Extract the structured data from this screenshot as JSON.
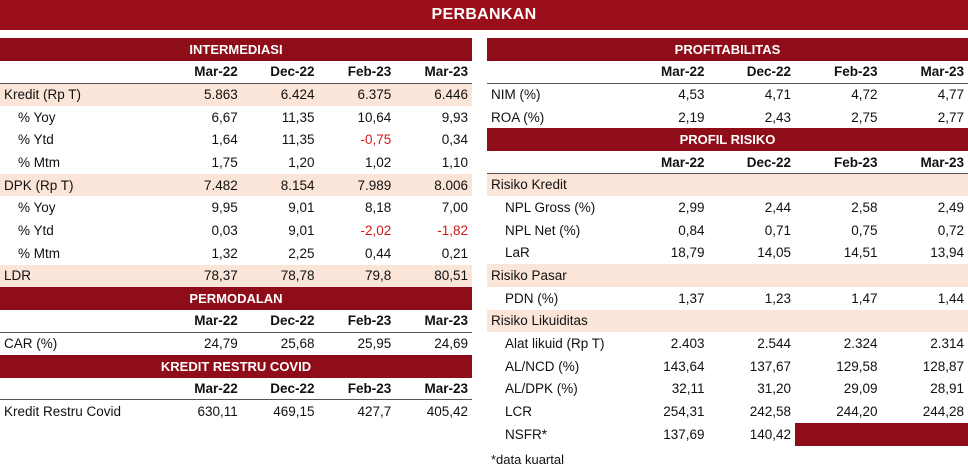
{
  "title": "PERBANKAN",
  "periods": [
    "Mar-22",
    "Dec-22",
    "Feb-23",
    "Mar-23"
  ],
  "intermediasi": {
    "title": "INTERMEDIASI",
    "rows": [
      {
        "label": "Kredit (Rp T)",
        "values": [
          "5.863",
          "6.424",
          "6.375",
          "6.446"
        ]
      },
      {
        "label": "% Yoy",
        "values": [
          "6,67",
          "11,35",
          "10,64",
          "9,93"
        ]
      },
      {
        "label": "% Ytd",
        "values": [
          "1,64",
          "11,35",
          "-0,75",
          "0,34"
        ]
      },
      {
        "label": "% Mtm",
        "values": [
          "1,75",
          "1,20",
          "1,02",
          "1,10"
        ]
      },
      {
        "label": "DPK (Rp T)",
        "values": [
          "7.482",
          "8.154",
          "7.989",
          "8.006"
        ]
      },
      {
        "label": "% Yoy",
        "values": [
          "9,95",
          "9,01",
          "8,18",
          "7,00"
        ]
      },
      {
        "label": "% Ytd",
        "values": [
          "0,03",
          "9,01",
          "-2,02",
          "-1,82"
        ]
      },
      {
        "label": "% Mtm",
        "values": [
          "1,32",
          "2,25",
          "0,44",
          "0,21"
        ]
      },
      {
        "label": "LDR",
        "values": [
          "78,37",
          "78,78",
          "79,8",
          "80,51"
        ]
      }
    ]
  },
  "permodalan": {
    "title": "PERMODALAN",
    "rows": [
      {
        "label": "CAR (%)",
        "values": [
          "24,79",
          "25,68",
          "25,95",
          "24,69"
        ]
      }
    ]
  },
  "kredit_restru": {
    "title": "KREDIT RESTRU COVID",
    "rows": [
      {
        "label": "Kredit Restru Covid",
        "values": [
          "630,11",
          "469,15",
          "427,7",
          "405,42"
        ]
      }
    ]
  },
  "profitabilitas": {
    "title": "PROFITABILITAS",
    "rows": [
      {
        "label": "NIM (%)",
        "values": [
          "4,53",
          "4,71",
          "4,72",
          "4,77"
        ]
      },
      {
        "label": "ROA (%)",
        "values": [
          "2,19",
          "2,43",
          "2,75",
          "2,77"
        ]
      }
    ]
  },
  "profil_risiko": {
    "title": "PROFIL RISIKO",
    "group_kredit": "Risiko Kredit",
    "kredit_rows": [
      {
        "label": "NPL Gross (%)",
        "values": [
          "2,99",
          "2,44",
          "2,58",
          "2,49"
        ]
      },
      {
        "label": "NPL Net (%)",
        "values": [
          "0,84",
          "0,71",
          "0,75",
          "0,72"
        ]
      },
      {
        "label": "LaR",
        "values": [
          "18,79",
          "14,05",
          "14,51",
          "13,94"
        ]
      }
    ],
    "group_pasar": "Risiko Pasar",
    "pasar_rows": [
      {
        "label": "PDN (%)",
        "values": [
          "1,37",
          "1,23",
          "1,47",
          "1,44"
        ]
      }
    ],
    "group_likuiditas": "Risiko Likuiditas",
    "likuiditas_rows": [
      {
        "label": "Alat likuid (Rp T)",
        "values": [
          "2.403",
          "2.544",
          "2.324",
          "2.314"
        ]
      },
      {
        "label": "AL/NCD (%)",
        "values": [
          "143,64",
          "137,67",
          "129,58",
          "128,87"
        ]
      },
      {
        "label": "AL/DPK (%)",
        "values": [
          "32,11",
          "31,20",
          "29,09",
          "28,91"
        ]
      },
      {
        "label": "LCR",
        "values": [
          "254,31",
          "242,58",
          "244,20",
          "244,28"
        ]
      },
      {
        "label": "NSFR*",
        "values": [
          "137,69",
          "140,42",
          "",
          ""
        ]
      }
    ]
  },
  "footnote": "*data kuartal",
  "colors": {
    "header": "#8e0d18",
    "shade": "#fbe4d8",
    "negative": "#d01a1a"
  }
}
